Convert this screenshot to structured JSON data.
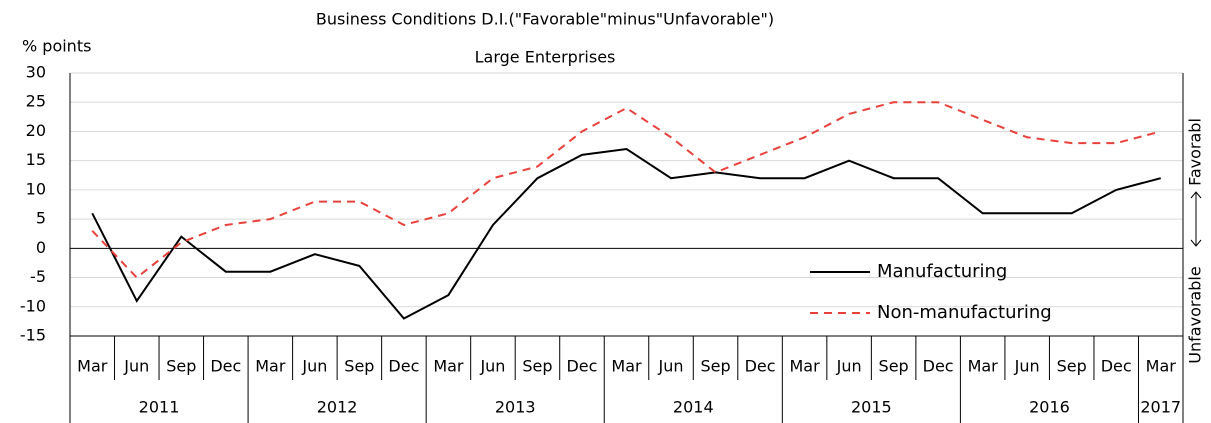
{
  "chart_data": {
    "type": "line",
    "title": "Business Conditions D.I.(\"Favorable\"minus\"Unfavorable\")",
    "subtitle": "Large Enterprises",
    "y_axis_label": "% points",
    "right_labels": {
      "top": "Favorabl",
      "bottom": "Unfavorable"
    },
    "categories": [
      "Mar",
      "Jun",
      "Sep",
      "Dec",
      "Mar",
      "Jun",
      "Sep",
      "Dec",
      "Mar",
      "Jun",
      "Sep",
      "Dec",
      "Mar",
      "Jun",
      "Sep",
      "Dec",
      "Mar",
      "Jun",
      "Sep",
      "Dec",
      "Mar",
      "Jun",
      "Sep",
      "Dec",
      "Mar"
    ],
    "years": [
      "2011",
      "2012",
      "2013",
      "2014",
      "2015",
      "2016",
      "2017"
    ],
    "series": [
      {
        "name": "Manufacturing",
        "color": "#000000",
        "linestyle": "solid",
        "values": [
          6,
          -9,
          2,
          -4,
          -4,
          -1,
          -3,
          -12,
          -8,
          4,
          12,
          16,
          17,
          12,
          13,
          12,
          12,
          15,
          12,
          12,
          6,
          6,
          6,
          10,
          12
        ]
      },
      {
        "name": "Non-manufacturing",
        "color": "#e8413c",
        "linestyle": "dashed",
        "values": [
          3,
          -5,
          1,
          4,
          5,
          8,
          8,
          4,
          6,
          12,
          14,
          20,
          24,
          19,
          13,
          16,
          19,
          23,
          25,
          25,
          22,
          19,
          18,
          18,
          20
        ]
      }
    ],
    "ylim": [
      -15,
      30
    ],
    "yticks": [
      -15,
      -10,
      -5,
      0,
      5,
      10,
      15,
      20,
      25,
      30
    ],
    "grid": true,
    "legend": "lower right"
  }
}
